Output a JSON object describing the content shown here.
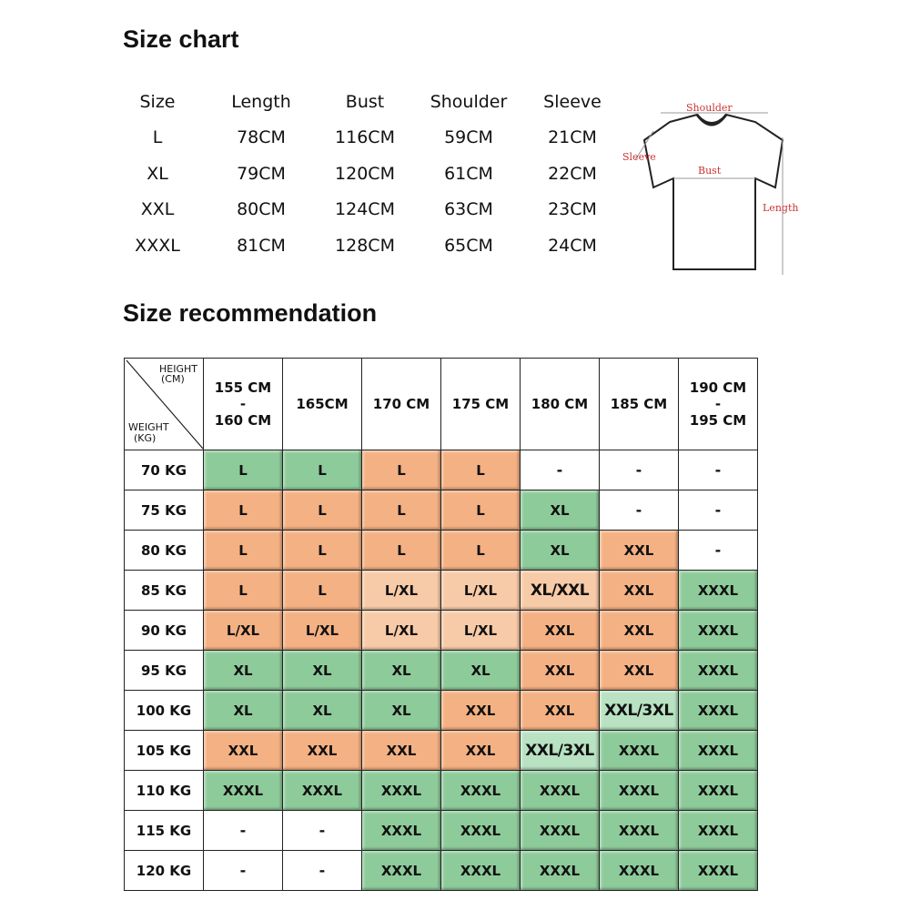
{
  "size_chart": {
    "title": "Size chart",
    "headers": [
      "Size",
      "Length",
      "Bust",
      "Shoulder",
      "Sleeve"
    ],
    "rows": [
      [
        "L",
        "78CM",
        "116CM",
        "59CM",
        "21CM"
      ],
      [
        "XL",
        "79CM",
        "120CM",
        "61CM",
        "22CM"
      ],
      [
        "XXL",
        "80CM",
        "124CM",
        "63CM",
        "23CM"
      ],
      [
        "XXXL",
        "81CM",
        "128CM",
        "65CM",
        "24CM"
      ]
    ],
    "diagram_labels": {
      "shoulder": "Shoulder",
      "sleeve": "Sleeve",
      "bust": "Bust",
      "length": "Length"
    }
  },
  "recommendation": {
    "title": "Size recommendation",
    "corner": {
      "height": "HEIGHT",
      "height_unit": "(CM)",
      "weight": "WEIGHT",
      "weight_unit": "(KG)"
    },
    "heights": [
      [
        "155 CM",
        "-",
        "160 CM"
      ],
      [
        "165CM"
      ],
      [
        "170 CM"
      ],
      [
        "175 CM"
      ],
      [
        "180 CM"
      ],
      [
        "185 CM"
      ],
      [
        "190 CM",
        "-",
        "195 CM"
      ]
    ],
    "colors": {
      "G": "#8ecb9a",
      "O": "#f4b183",
      "LO": "#f8cba8",
      "LG": "#b8e2c2",
      "W": "#ffffff"
    },
    "rows": [
      {
        "weight": "70 KG",
        "cells": [
          "L",
          "L",
          "L",
          "L",
          "-",
          "-",
          "-"
        ],
        "colors": [
          "G",
          "G",
          "O",
          "O",
          "W",
          "W",
          "W"
        ]
      },
      {
        "weight": "75 KG",
        "cells": [
          "L",
          "L",
          "L",
          "L",
          "XL",
          "-",
          "-"
        ],
        "colors": [
          "O",
          "O",
          "O",
          "O",
          "G",
          "W",
          "W"
        ]
      },
      {
        "weight": "80 KG",
        "cells": [
          "L",
          "L",
          "L",
          "L",
          "XL",
          "XXL",
          "-"
        ],
        "colors": [
          "O",
          "O",
          "O",
          "O",
          "G",
          "O",
          "W"
        ]
      },
      {
        "weight": "85 KG",
        "cells": [
          "L",
          "L",
          "L/XL",
          "L/XL",
          "XL/XXL",
          "XXL",
          "XXXL"
        ],
        "colors": [
          "O",
          "O",
          "LO",
          "LO",
          "LO",
          "O",
          "G"
        ]
      },
      {
        "weight": "90 KG",
        "cells": [
          "L/XL",
          "L/XL",
          "L/XL",
          "L/XL",
          "XXL",
          "XXL",
          "XXXL"
        ],
        "colors": [
          "O",
          "O",
          "LO",
          "LO",
          "O",
          "O",
          "G"
        ]
      },
      {
        "weight": "95 KG",
        "cells": [
          "XL",
          "XL",
          "XL",
          "XL",
          "XXL",
          "XXL",
          "XXXL"
        ],
        "colors": [
          "G",
          "G",
          "G",
          "G",
          "O",
          "O",
          "G"
        ]
      },
      {
        "weight": "100 KG",
        "cells": [
          "XL",
          "XL",
          "XL",
          "XXL",
          "XXL",
          "XXL/3XL",
          "XXXL"
        ],
        "colors": [
          "G",
          "G",
          "G",
          "O",
          "O",
          "LG",
          "G"
        ]
      },
      {
        "weight": "105 KG",
        "cells": [
          "XXL",
          "XXL",
          "XXL",
          "XXL",
          "XXL/3XL",
          "XXXL",
          "XXXL"
        ],
        "colors": [
          "O",
          "O",
          "O",
          "O",
          "LG",
          "G",
          "G"
        ]
      },
      {
        "weight": "110 KG",
        "cells": [
          "XXXL",
          "XXXL",
          "XXXL",
          "XXXL",
          "XXXL",
          "XXXL",
          "XXXL"
        ],
        "colors": [
          "G",
          "G",
          "G",
          "G",
          "G",
          "G",
          "G"
        ]
      },
      {
        "weight": "115 KG",
        "cells": [
          "-",
          "-",
          "XXXL",
          "XXXL",
          "XXXL",
          "XXXL",
          "XXXL"
        ],
        "colors": [
          "W",
          "W",
          "G",
          "G",
          "G",
          "G",
          "G"
        ]
      },
      {
        "weight": "120 KG",
        "cells": [
          "-",
          "-",
          "XXXL",
          "XXXL",
          "XXXL",
          "XXXL",
          "XXXL"
        ],
        "colors": [
          "W",
          "W",
          "G",
          "G",
          "G",
          "G",
          "G"
        ]
      }
    ]
  }
}
